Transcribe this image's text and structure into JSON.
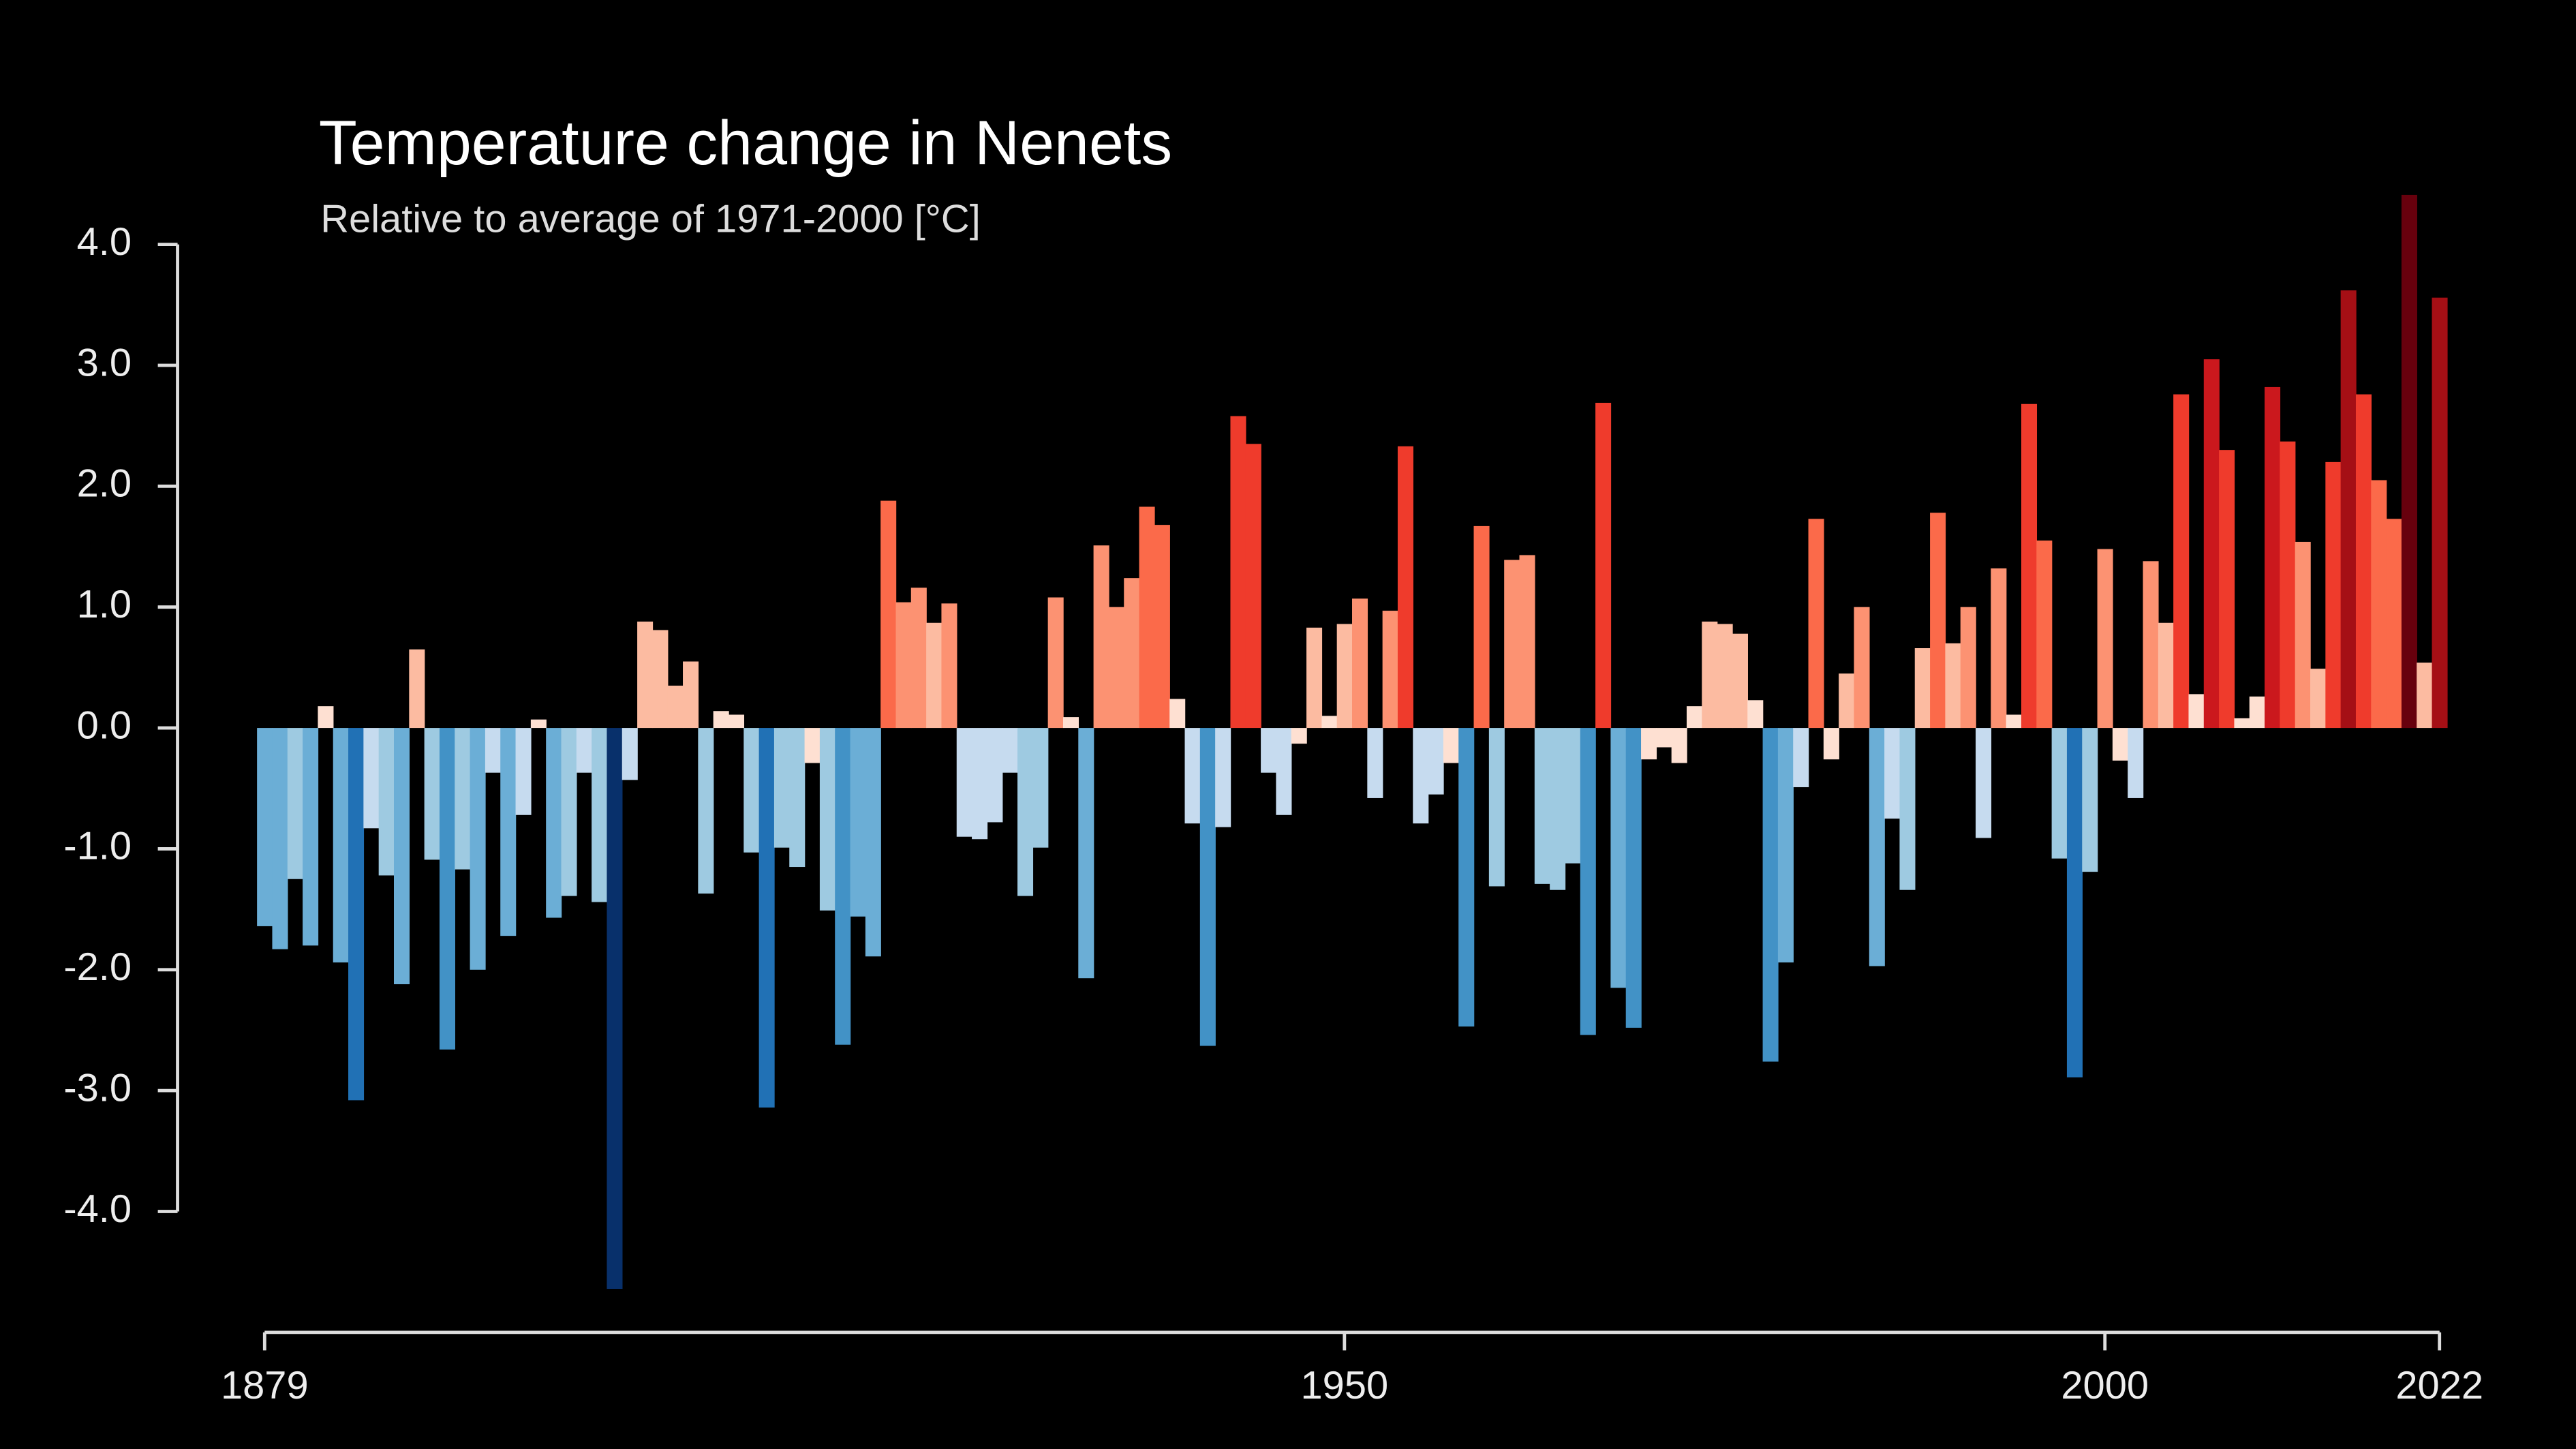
{
  "chart_data": {
    "type": "bar",
    "title": "Temperature change in Nenets",
    "subtitle": "Relative to average of 1971-2000  [°C]",
    "x": [
      1879,
      1880,
      1881,
      1882,
      1883,
      1884,
      1885,
      1886,
      1887,
      1888,
      1889,
      1890,
      1891,
      1892,
      1893,
      1894,
      1895,
      1896,
      1897,
      1898,
      1899,
      1900,
      1901,
      1902,
      1903,
      1904,
      1905,
      1906,
      1907,
      1908,
      1909,
      1910,
      1911,
      1912,
      1913,
      1914,
      1915,
      1916,
      1917,
      1918,
      1919,
      1920,
      1921,
      1922,
      1923,
      1924,
      1925,
      1926,
      1927,
      1928,
      1929,
      1930,
      1931,
      1932,
      1933,
      1934,
      1935,
      1936,
      1937,
      1938,
      1939,
      1940,
      1941,
      1942,
      1943,
      1944,
      1945,
      1946,
      1947,
      1948,
      1949,
      1950,
      1951,
      1952,
      1953,
      1954,
      1955,
      1956,
      1957,
      1958,
      1959,
      1960,
      1961,
      1962,
      1963,
      1964,
      1965,
      1966,
      1967,
      1968,
      1969,
      1970,
      1971,
      1972,
      1973,
      1974,
      1975,
      1976,
      1977,
      1978,
      1979,
      1980,
      1981,
      1982,
      1983,
      1984,
      1985,
      1986,
      1987,
      1988,
      1989,
      1990,
      1991,
      1992,
      1993,
      1994,
      1995,
      1996,
      1997,
      1998,
      1999,
      2000,
      2001,
      2002,
      2003,
      2004,
      2005,
      2006,
      2007,
      2008,
      2009,
      2010,
      2011,
      2012,
      2013,
      2014,
      2015,
      2016,
      2017,
      2018,
      2019,
      2020,
      2021,
      2022
    ],
    "values": [
      -1.64,
      -1.83,
      -1.25,
      -1.8,
      0.18,
      -1.94,
      -3.08,
      -0.83,
      -1.22,
      -2.12,
      0.65,
      -1.09,
      -2.66,
      -1.17,
      -2.0,
      -0.37,
      -1.72,
      -0.72,
      0.07,
      -1.57,
      -1.39,
      -0.37,
      -1.44,
      -4.64,
      -0.43,
      0.88,
      0.81,
      0.35,
      0.55,
      -1.37,
      0.14,
      0.11,
      -1.03,
      -3.14,
      -0.99,
      -1.15,
      -0.29,
      -1.51,
      -2.62,
      -1.56,
      -1.89,
      1.88,
      1.04,
      1.16,
      0.87,
      1.03,
      -0.9,
      -0.92,
      -0.78,
      -0.37,
      -1.39,
      -0.99,
      1.08,
      0.09,
      -2.07,
      1.51,
      1.0,
      1.24,
      1.83,
      1.68,
      0.24,
      -0.79,
      -2.63,
      -0.82,
      2.58,
      2.35,
      -0.37,
      -0.72,
      -0.13,
      0.83,
      0.1,
      0.86,
      1.07,
      -0.58,
      0.97,
      2.33,
      -0.79,
      -0.55,
      -0.29,
      -2.47,
      1.67,
      -1.31,
      1.39,
      1.43,
      -1.29,
      -1.34,
      -1.12,
      -2.54,
      2.69,
      -2.15,
      -2.48,
      -0.26,
      -0.16,
      -0.29,
      0.18,
      0.88,
      0.86,
      0.78,
      0.23,
      -2.76,
      -1.94,
      -0.49,
      1.73,
      -0.26,
      0.45,
      1.0,
      -1.97,
      -0.75,
      -1.34,
      0.66,
      1.78,
      0.7,
      1.0,
      -0.91,
      1.32,
      0.11,
      2.68,
      1.55,
      -1.08,
      -2.89,
      -1.19,
      1.48,
      -0.27,
      -0.58,
      1.38,
      0.87,
      2.76,
      0.28,
      3.05,
      2.3,
      0.08,
      0.26,
      2.82,
      2.37,
      1.54,
      0.49,
      2.2,
      3.62,
      2.76,
      2.05,
      1.73,
      4.41,
      0.54,
      3.56
    ],
    "colors": [
      "#08306b",
      "#08519c",
      "#2171b5",
      "#4292c6",
      "#6baed6",
      "#9ecae1",
      "#c6dbef",
      "#fee0d2",
      "#fcbba1",
      "#fc9272",
      "#fb6a4a",
      "#ef3b2c",
      "#cb181d",
      "#a50f15",
      "#67000d"
    ],
    "xlim": [
      1879,
      2022
    ],
    "xticks": [
      1879,
      1950,
      2000,
      2022
    ],
    "ylim": [
      -5,
      4.5
    ],
    "yticks": [
      {
        "value": -4,
        "label": "-4.0"
      },
      {
        "value": -3,
        "label": "-3.0"
      },
      {
        "value": -2,
        "label": "-2.0"
      },
      {
        "value": -1,
        "label": "-1.0"
      },
      {
        "value": 0,
        "label": "0.0"
      },
      {
        "value": 1,
        "label": "1.0"
      },
      {
        "value": 2,
        "label": "2.0"
      },
      {
        "value": 3,
        "label": "3.0"
      },
      {
        "value": 4,
        "label": "4.0"
      }
    ]
  }
}
